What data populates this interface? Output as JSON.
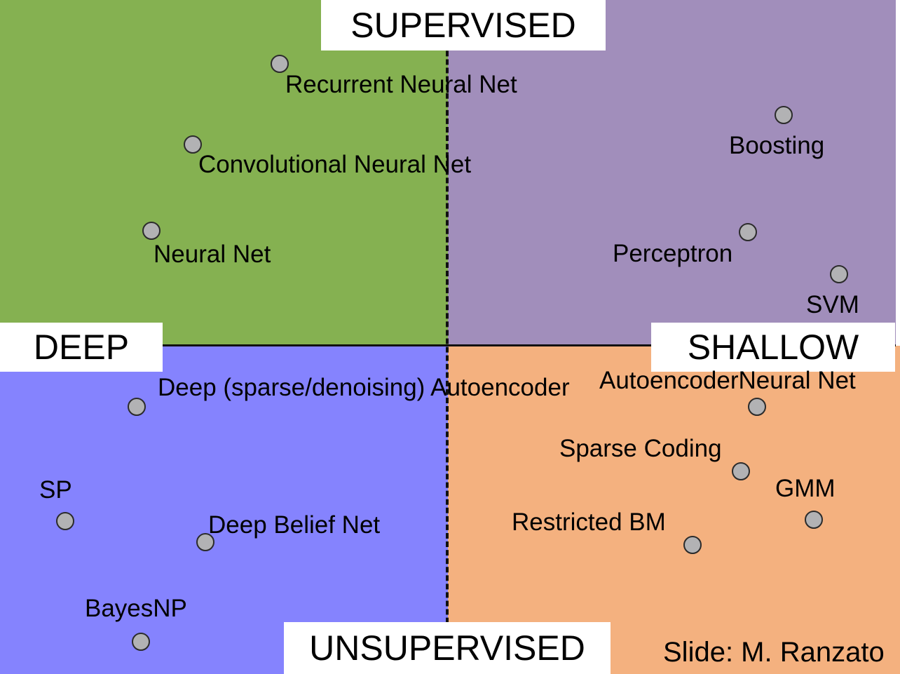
{
  "axes": {
    "top": "SUPERVISED",
    "bottom": "UNSUPERVISED",
    "left": "DEEP",
    "right": "SHALLOW"
  },
  "colors": {
    "supervised_deep": "#85b151",
    "supervised_shallow": "#a18ebb",
    "unsupervised_deep": "#8583fe",
    "unsupervised_shallow": "#f4b17f"
  },
  "models": {
    "recurrent_nn": "Recurrent Neural Net",
    "convolutional_nn": "Convolutional Neural Net",
    "neural_net": "Neural Net",
    "boosting": "Boosting",
    "perceptron": "Perceptron",
    "svm": "SVM",
    "deep_autoencoder": "Deep (sparse/denoising) Autoencoder",
    "autoencoder_neural_net": "AutoencoderNeural Net",
    "sparse_coding": "Sparse Coding",
    "gmm": "GMM",
    "restricted_bm": "Restricted BM",
    "sp": "SP",
    "deep_belief_net": "Deep Belief Net",
    "bayesnp": "BayesNP"
  },
  "credit": "Slide: M. Ranzato"
}
